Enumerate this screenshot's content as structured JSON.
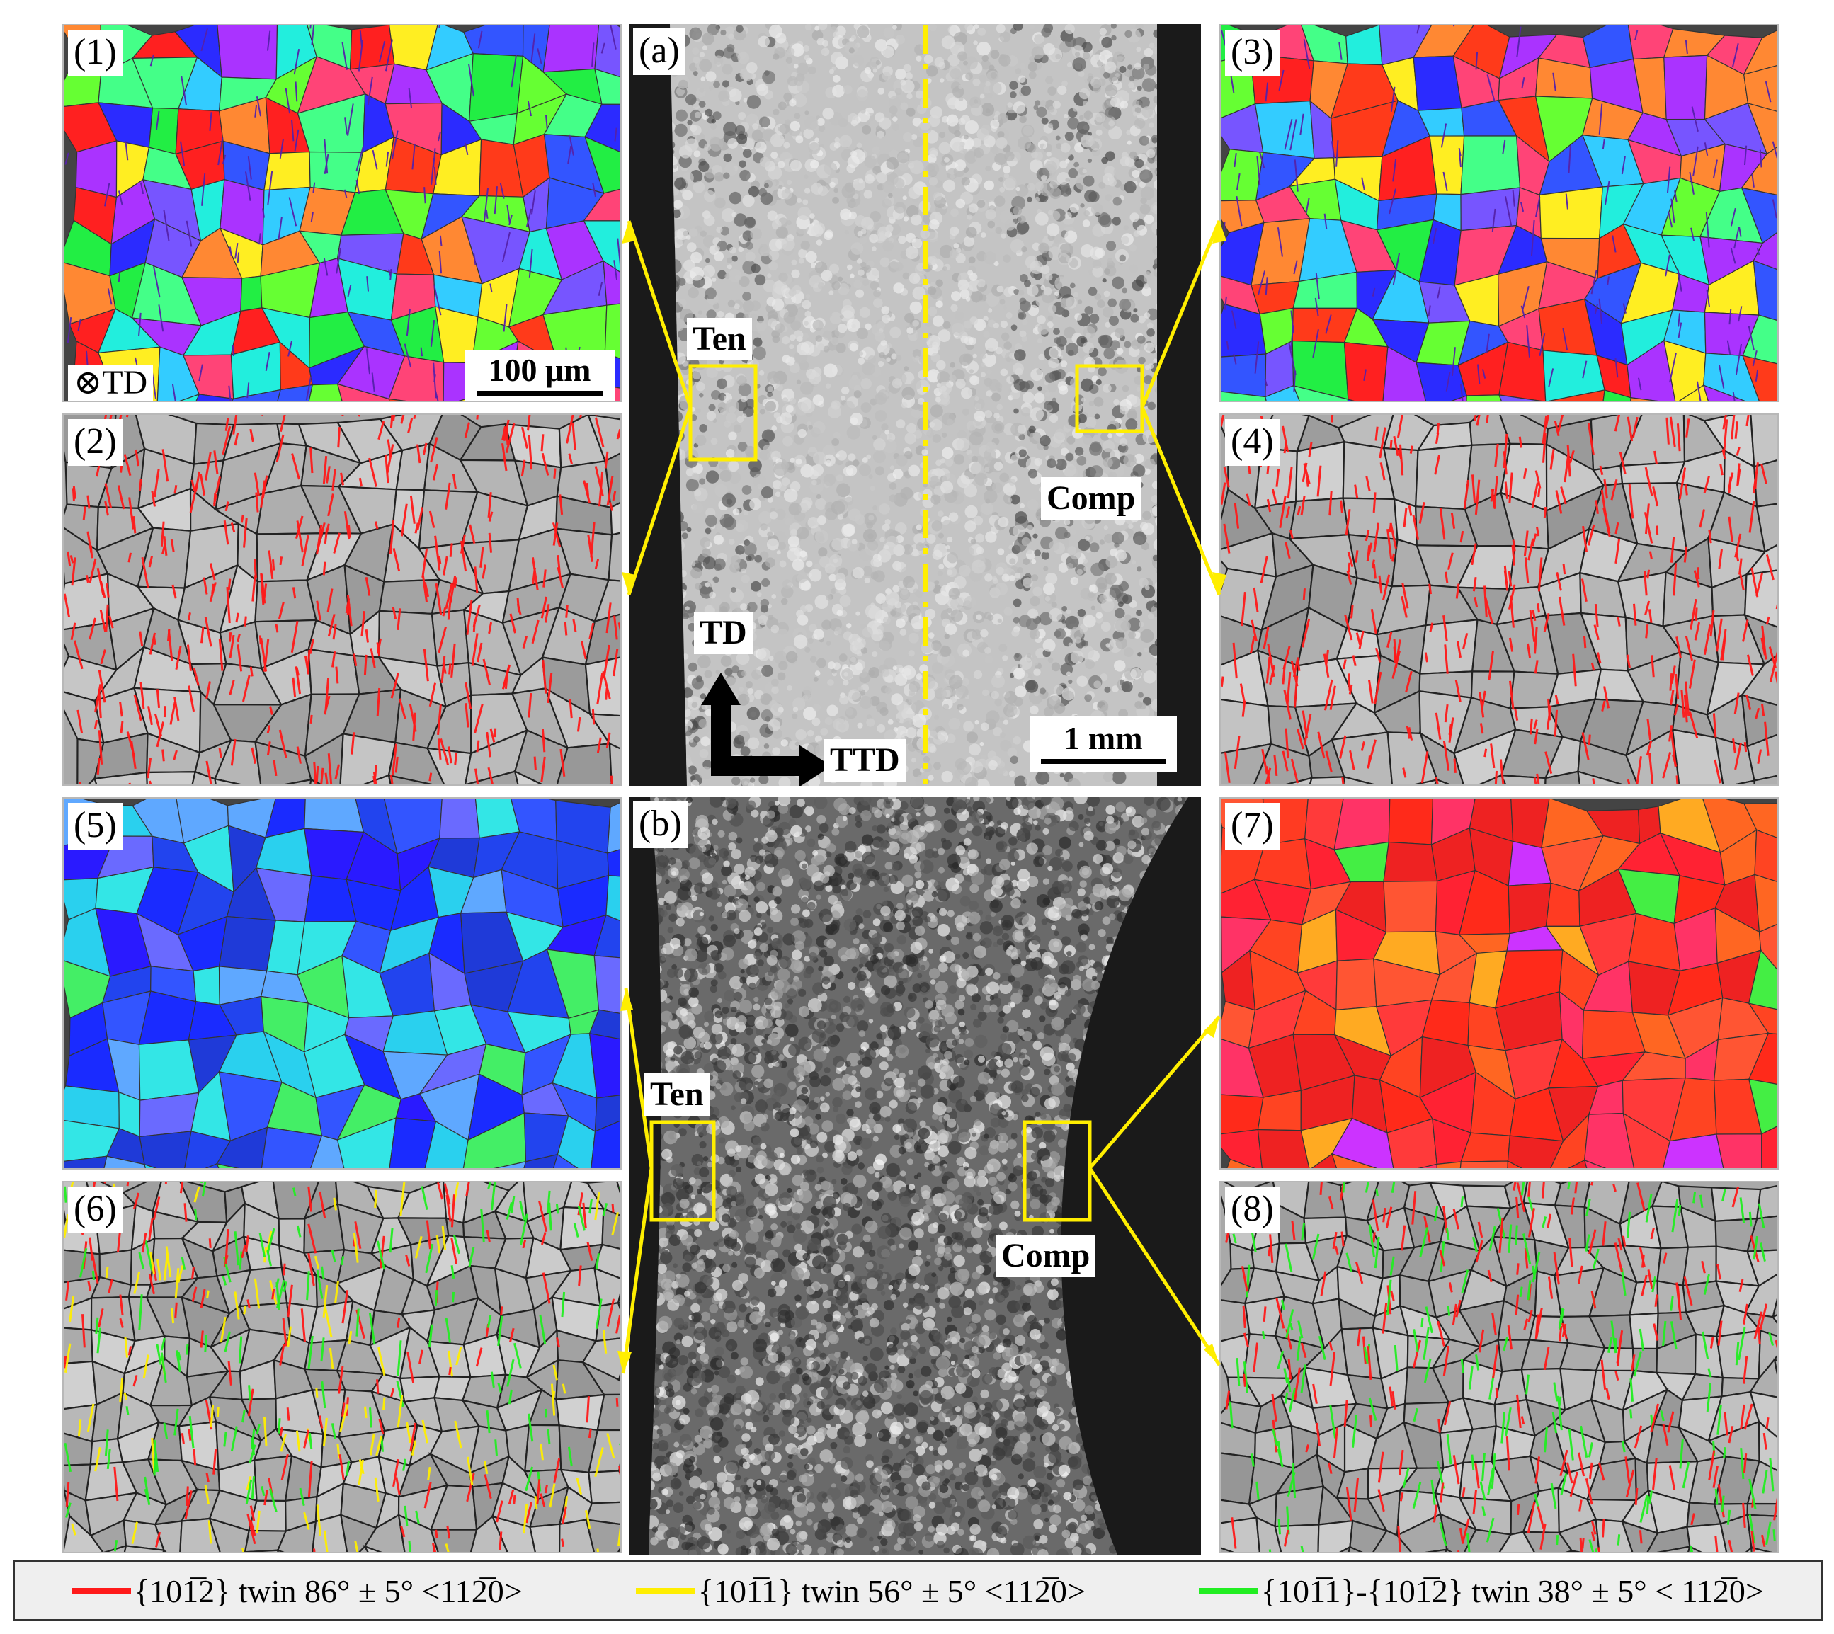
{
  "colors": {
    "red_twin": "#ff1a1a",
    "yellow_twin": "#ffee00",
    "green_twin": "#22ee22",
    "marker_yellow": "#ffee00"
  },
  "panels": {
    "p1": {
      "label": "(1)",
      "kind": "ipf-rainbow"
    },
    "p2": {
      "label": "(2)",
      "kind": "boundary-red"
    },
    "p3": {
      "label": "(3)",
      "kind": "ipf-rainbow"
    },
    "p4": {
      "label": "(4)",
      "kind": "boundary-red"
    },
    "p5": {
      "label": "(5)",
      "kind": "ipf-blue"
    },
    "p6": {
      "label": "(6)",
      "kind": "boundary-mixed"
    },
    "p7": {
      "label": "(7)",
      "kind": "ipf-red"
    },
    "p8": {
      "label": "(8)",
      "kind": "boundary-green"
    },
    "a": {
      "label": "(a)",
      "kind": "micrograph-light"
    },
    "b": {
      "label": "(b)",
      "kind": "micrograph-dark"
    }
  },
  "p1_extra": {
    "axis_symbol": "⊗",
    "axis_label": "TD",
    "scale": "100 μm"
  },
  "a_extra": {
    "ten": "Ten",
    "comp": "Comp",
    "td": "TD",
    "ttd": "TTD",
    "scale": "1 mm"
  },
  "b_extra": {
    "ten": "Ten",
    "comp": "Comp"
  },
  "legend": [
    {
      "color": "#ff1a1a",
      "text": "{101̅2} twin 86° ± 5° <112̅0>"
    },
    {
      "color": "#ffee00",
      "text": "{101̅1} twin 56° ± 5° <112̅0>"
    },
    {
      "color": "#22ee22",
      "text": "{101̅1}-{101̅2} twin 38° ± 5° < 112̅0>"
    }
  ]
}
